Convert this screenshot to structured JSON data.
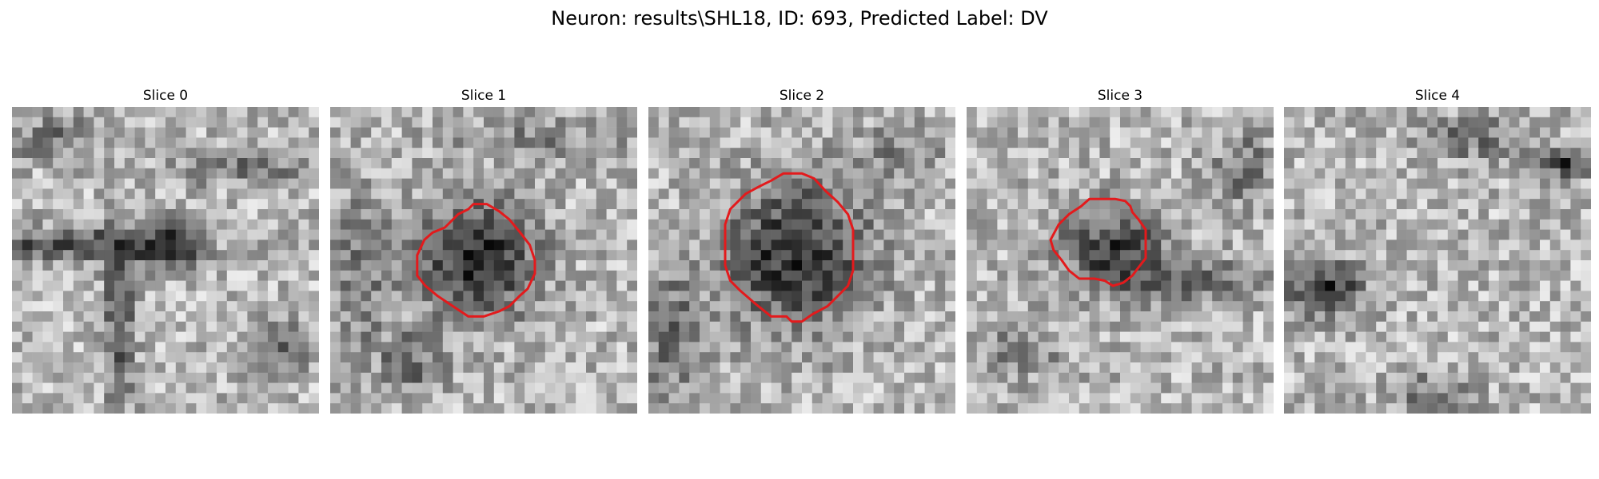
{
  "figure": {
    "title": "Neuron: results\\SHL18, ID: 693, Predicted Label: DV"
  },
  "panels": [
    {
      "title": "Slice 0",
      "has_contour": false,
      "seed": 11,
      "dark_regions": "horizontal dark band mid-left with dark blob near center and vertical dark stroke below"
    },
    {
      "title": "Slice 1",
      "has_contour": true,
      "seed": 23,
      "contour_color": "#e31a1c"
    },
    {
      "title": "Slice 2",
      "has_contour": true,
      "seed": 37,
      "contour_color": "#e31a1c"
    },
    {
      "title": "Slice 3",
      "has_contour": true,
      "seed": 51,
      "contour_color": "#e31a1c"
    },
    {
      "title": "Slice 4",
      "has_contour": false,
      "seed": 67
    }
  ],
  "colors": {
    "contour": "#e31a1c",
    "background": "#ffffff",
    "colormap": "gray"
  }
}
